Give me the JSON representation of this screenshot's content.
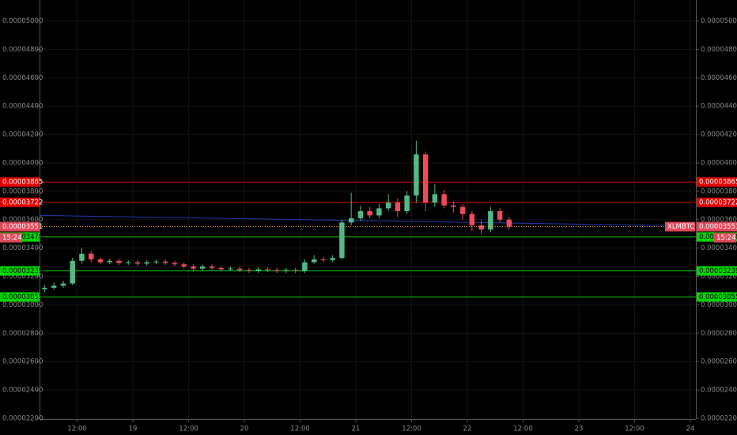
{
  "chart_data": {
    "type": "candlestick",
    "symbol": "XLMBTC",
    "last_price": 3.551e-05,
    "countdown": "15:24",
    "up_color": "#53b987",
    "down_color": "#eb4d5c",
    "x": [
      5,
      7,
      9,
      11,
      13,
      15,
      17,
      19,
      21,
      23,
      25,
      27,
      29,
      31,
      33,
      35,
      37,
      39,
      41,
      43,
      45,
      47,
      49,
      51,
      53,
      55,
      57,
      59,
      61,
      63,
      65,
      67,
      69,
      71,
      73,
      75,
      77,
      79,
      81,
      83,
      85,
      87,
      89,
      91,
      93,
      95,
      97,
      99,
      101,
      103,
      105
    ],
    "open": [
      3.11e-05,
      3.12e-05,
      3.135e-05,
      3.15e-05,
      3.31e-05,
      3.36e-05,
      3.32e-05,
      3.3e-05,
      3.31e-05,
      3.295e-05,
      3.3e-05,
      3.29e-05,
      3.3e-05,
      3.305e-05,
      3.295e-05,
      3.285e-05,
      3.27e-05,
      3.255e-05,
      3.27e-05,
      3.26e-05,
      3.25e-05,
      3.255e-05,
      3.245e-05,
      3.24e-05,
      3.25e-05,
      3.245e-05,
      3.24e-05,
      3.245e-05,
      3.24e-05,
      3.3e-05,
      3.32e-05,
      3.315e-05,
      3.33e-05,
      3.58e-05,
      3.61e-05,
      3.66e-05,
      3.63e-05,
      3.68e-05,
      3.72e-05,
      3.66e-05,
      3.77e-05,
      4.06e-05,
      3.72e-05,
      3.78e-05,
      3.7e-05,
      3.69e-05,
      3.64e-05,
      3.56e-05,
      3.53e-05,
      3.66e-05,
      3.6e-05
    ],
    "high": [
      3.14e-05,
      3.155e-05,
      3.17e-05,
      3.33e-05,
      3.4e-05,
      3.38e-05,
      3.335e-05,
      3.325e-05,
      3.325e-05,
      3.315e-05,
      3.315e-05,
      3.315e-05,
      3.32e-05,
      3.32e-05,
      3.31e-05,
      3.3e-05,
      3.285e-05,
      3.285e-05,
      3.285e-05,
      3.275e-05,
      3.27e-05,
      3.27e-05,
      3.26e-05,
      3.265e-05,
      3.265e-05,
      3.26e-05,
      3.26e-05,
      3.26e-05,
      3.32e-05,
      3.35e-05,
      3.34e-05,
      3.35e-05,
      3.6e-05,
      3.79e-05,
      3.7e-05,
      3.69e-05,
      3.71e-05,
      3.78e-05,
      3.75e-05,
      3.8e-05,
      4.156e-05,
      4.08e-05,
      3.85e-05,
      3.81e-05,
      3.73e-05,
      3.71e-05,
      3.66e-05,
      3.6e-05,
      3.69e-05,
      3.68e-05,
      3.62e-05
    ],
    "low": [
      3.09e-05,
      3.105e-05,
      3.12e-05,
      3.14e-05,
      3.29e-05,
      3.3e-05,
      3.285e-05,
      3.285e-05,
      3.28e-05,
      3.28e-05,
      3.275e-05,
      3.275e-05,
      3.285e-05,
      3.28e-05,
      3.27e-05,
      3.255e-05,
      3.235e-05,
      3.24e-05,
      3.245e-05,
      3.235e-05,
      3.235e-05,
      3.23e-05,
      3.225e-05,
      3.225e-05,
      3.23e-05,
      3.225e-05,
      3.225e-05,
      3.225e-05,
      3.225e-05,
      3.29e-05,
      3.3e-05,
      3.3e-05,
      3.32e-05,
      3.56e-05,
      3.59e-05,
      3.61e-05,
      3.61e-05,
      3.66e-05,
      3.62e-05,
      3.64e-05,
      3.72e-05,
      3.66e-05,
      3.69e-05,
      3.68e-05,
      3.65e-05,
      3.6e-05,
      3.52e-05,
      3.5e-05,
      3.51e-05,
      3.58e-05,
      3.53e-05
    ],
    "close": [
      3.12e-05,
      3.135e-05,
      3.15e-05,
      3.31e-05,
      3.36e-05,
      3.32e-05,
      3.3e-05,
      3.31e-05,
      3.295e-05,
      3.3e-05,
      3.29e-05,
      3.3e-05,
      3.305e-05,
      3.295e-05,
      3.285e-05,
      3.27e-05,
      3.255e-05,
      3.27e-05,
      3.26e-05,
      3.25e-05,
      3.255e-05,
      3.245e-05,
      3.24e-05,
      3.25e-05,
      3.245e-05,
      3.24e-05,
      3.245e-05,
      3.24e-05,
      3.3e-05,
      3.32e-05,
      3.315e-05,
      3.33e-05,
      3.58e-05,
      3.61e-05,
      3.66e-05,
      3.63e-05,
      3.68e-05,
      3.72e-05,
      3.66e-05,
      3.77e-05,
      4.06e-05,
      3.72e-05,
      3.78e-05,
      3.7e-05,
      3.69e-05,
      3.64e-05,
      3.56e-05,
      3.53e-05,
      3.66e-05,
      3.6e-05,
      3.551e-05
    ],
    "moving_average": {
      "x": [
        3.9,
        145.2
      ],
      "values": [
        3.63e-05,
        3.555e-05
      ],
      "color": "#2438b0"
    },
    "levels": [
      {
        "value": 3.865e-05,
        "color": "#e00000"
      },
      {
        "value": 3.722e-05,
        "color": "#e00000"
      },
      {
        "value": 3.478e-05,
        "color": "#00d400"
      },
      {
        "value": 3.239e-05,
        "color": "#00d400"
      },
      {
        "value": 3.055e-05,
        "color": "#00d400"
      }
    ],
    "xlim": [
      3.9,
      145.2
    ],
    "xticks": [
      {
        "value": 12,
        "label": "12:00"
      },
      {
        "value": 24,
        "label": "19"
      },
      {
        "value": 36,
        "label": "12:00"
      },
      {
        "value": 48,
        "label": "20"
      },
      {
        "value": 60,
        "label": "12:00"
      },
      {
        "value": 72,
        "label": "21"
      },
      {
        "value": 84,
        "label": "12:00"
      },
      {
        "value": 96,
        "label": "22"
      },
      {
        "value": 108,
        "label": "12:00"
      },
      {
        "value": 120,
        "label": "23"
      },
      {
        "value": 132,
        "label": "12:00"
      },
      {
        "value": 144,
        "label": "24"
      }
    ],
    "ylim": [
      2.194e-05,
      5.148e-05
    ],
    "yticks": [
      {
        "value": 2.2e-05,
        "label": "0.00002200"
      },
      {
        "value": 2.4e-05,
        "label": "0.00002400"
      },
      {
        "value": 2.6e-05,
        "label": "0.00002600"
      },
      {
        "value": 2.8e-05,
        "label": "0.00002800"
      },
      {
        "value": 3e-05,
        "label": "0.00003000"
      },
      {
        "value": 3.2e-05,
        "label": "0.00003200"
      },
      {
        "value": 3.4e-05,
        "label": "0.00003400"
      },
      {
        "value": 3.6e-05,
        "label": "0.00003600"
      },
      {
        "value": 3.8e-05,
        "label": "0.00003800"
      },
      {
        "value": 4e-05,
        "label": "0.00004000"
      },
      {
        "value": 4.2e-05,
        "label": "0.00004200"
      },
      {
        "value": 4.4e-05,
        "label": "0.00004400"
      },
      {
        "value": 4.6e-05,
        "label": "0.00004600"
      },
      {
        "value": 4.8e-05,
        "label": "0.00004800"
      },
      {
        "value": 5e-05,
        "label": "0.00005000"
      }
    ],
    "grid": true
  }
}
